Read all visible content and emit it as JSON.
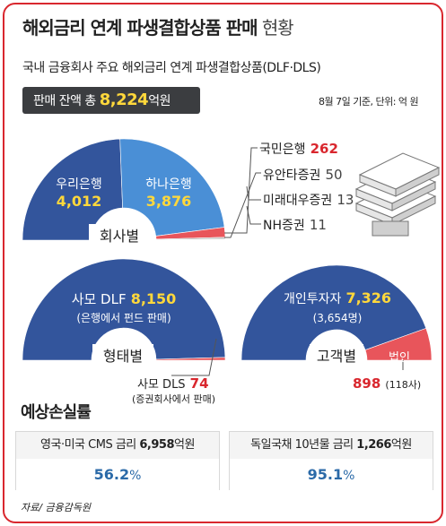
{
  "title": {
    "main": "해외금리 연계 파생결합상품 판매",
    "light": " 현황"
  },
  "subtitle": "국내 금융회사 주요 해외금리 연계 파생결합상품(DLF·DLS)",
  "total": {
    "prefix": "판매 잔액 총 ",
    "value": "8,224",
    "unit": "억원"
  },
  "date_note": "8월 7일 기준, 단위: 억 원",
  "colors": {
    "accent_blue": "#33559c",
    "mid_blue": "#4a8fd6",
    "red": "#e8555b",
    "yellow": "#ffd83b"
  },
  "chart_data": [
    {
      "type": "pie",
      "title": "회사별",
      "slices": [
        {
          "label": "우리은행",
          "value": 4012,
          "display": "4,012"
        },
        {
          "label": "하나은행",
          "value": 3876,
          "display": "3,876"
        },
        {
          "label": "국민은행",
          "value": 262,
          "display": "262"
        },
        {
          "label": "유안타증권",
          "value": 50,
          "display": "50"
        },
        {
          "label": "미래대우증권",
          "value": 13,
          "display": "13"
        },
        {
          "label": "NH증권",
          "value": 11,
          "display": "11"
        }
      ]
    },
    {
      "type": "pie",
      "title": "형태별",
      "slices": [
        {
          "label": "사모 DLF",
          "value": 8150,
          "display": "8,150",
          "note": "(은행에서 펀드 판매)"
        },
        {
          "label": "사모 DLS",
          "value": 74,
          "display": "74",
          "note": "(증권회사에서 판매)"
        }
      ]
    },
    {
      "type": "pie",
      "title": "고객별",
      "slices": [
        {
          "label": "개인투자자",
          "value": 7326,
          "display": "7,326",
          "note": "(3,654명)"
        },
        {
          "label": "법인",
          "value": 898,
          "display": "898",
          "note": "(118사)"
        }
      ]
    }
  ],
  "loss": {
    "title": "예상손실률",
    "cards": [
      {
        "label": "영국·미국 CMS 금리 ",
        "amount": "6,958",
        "unit": "억원",
        "rate": "56.2",
        "pct": "%"
      },
      {
        "label": "독일국채 10년물 금리 ",
        "amount": "1,266",
        "unit": "억원",
        "rate": "95.1",
        "pct": "%"
      }
    ]
  },
  "source": "자료/ 금융감독원"
}
